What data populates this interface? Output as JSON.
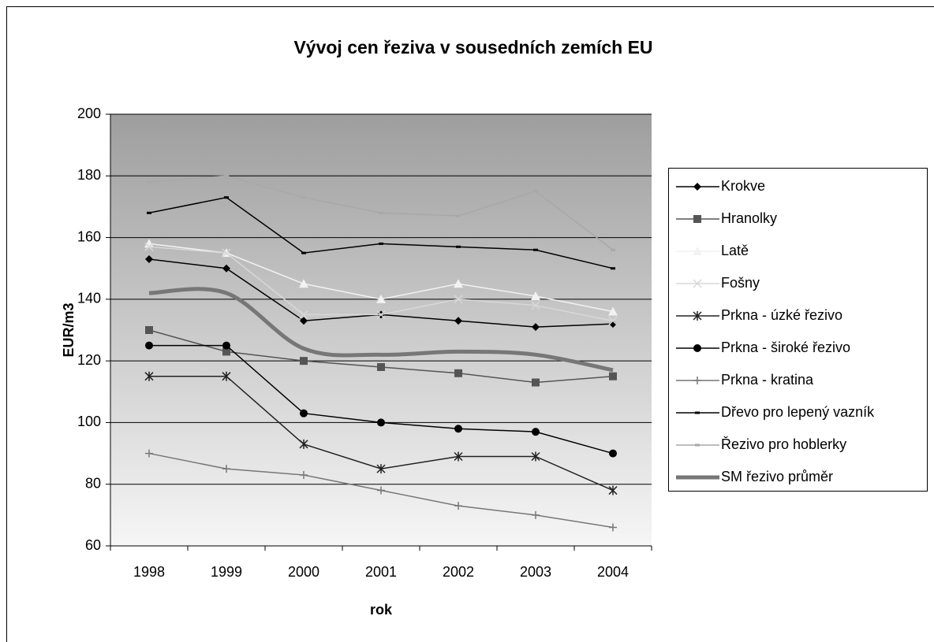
{
  "chart_data": {
    "type": "line",
    "title": "Vývoj cen řeziva v sousedních zemích EU",
    "x_label": "rok",
    "y_label": "EUR/m3",
    "categories": [
      "1998",
      "1999",
      "2000",
      "2001",
      "2002",
      "2003",
      "2004"
    ],
    "ylim": [
      60,
      200
    ],
    "yticks": [
      60,
      80,
      100,
      120,
      140,
      160,
      180,
      200
    ],
    "grid": true,
    "legend": "right",
    "series": [
      {
        "name": "Krokve",
        "color": "#000000",
        "marker": "diamond",
        "values": [
          153,
          150,
          133,
          135,
          133,
          131,
          132
        ]
      },
      {
        "name": "Hranolky",
        "color": "#555555",
        "marker": "square",
        "values": [
          130,
          123,
          120,
          118,
          116,
          113,
          115
        ]
      },
      {
        "name": "Latě",
        "color": "#f2f2f2",
        "marker": "triangle",
        "values": [
          158,
          155,
          145,
          140,
          145,
          141,
          136
        ]
      },
      {
        "name": "Fošny",
        "color": "#d8d8d8",
        "marker": "x",
        "values": [
          157,
          155,
          135,
          135,
          140,
          138,
          133
        ]
      },
      {
        "name": "Prkna - úzké řezivo",
        "color": "#222222",
        "marker": "asterisk",
        "values": [
          115,
          115,
          93,
          85,
          89,
          89,
          78
        ]
      },
      {
        "name": "Prkna - široké řezivo",
        "color": "#000000",
        "marker": "circle",
        "values": [
          125,
          125,
          103,
          100,
          98,
          97,
          90
        ]
      },
      {
        "name": "Prkna - kratina",
        "color": "#777777",
        "marker": "plus",
        "values": [
          90,
          85,
          83,
          78,
          73,
          70,
          66
        ]
      },
      {
        "name": "Dřevo pro lepený vazník",
        "color": "#000000",
        "marker": "dash",
        "values": [
          168,
          173,
          155,
          158,
          157,
          156,
          150
        ]
      },
      {
        "name": "Řezivo pro hoblerky",
        "color": "#a8a8a8",
        "marker": "dash",
        "values": [
          178,
          180,
          173,
          168,
          167,
          175,
          156
        ]
      },
      {
        "name": "SM řezivo průměr",
        "color": "#777777",
        "marker": "none",
        "width": 5,
        "smooth": true,
        "values": [
          142,
          142,
          124,
          122,
          123,
          122,
          117
        ]
      }
    ]
  }
}
